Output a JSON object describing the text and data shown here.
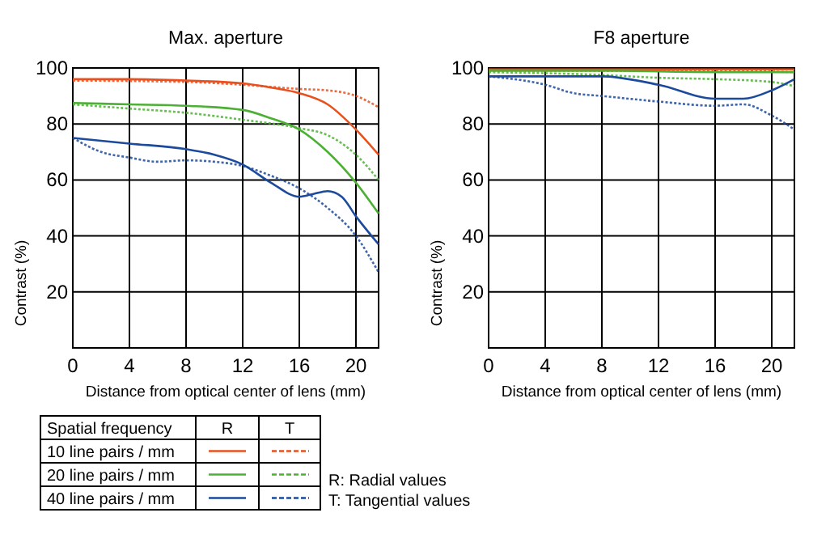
{
  "chart_data": [
    {
      "type": "line",
      "title": "Max. aperture",
      "xlabel": "Distance from optical center of lens (mm)",
      "ylabel": "Contrast (%)",
      "xlim": [
        0,
        21.6
      ],
      "xticks": [
        0,
        4,
        8,
        12,
        16,
        20
      ],
      "ylim": [
        0,
        100
      ],
      "yticks": [
        20,
        40,
        60,
        80,
        100
      ],
      "grid": true,
      "legend": "bottom",
      "legend_title": "Spatial frequency",
      "annotations": [
        "R",
        "T",
        "R: Radial values",
        "T: Tangential values"
      ],
      "series": [
        {
          "name": "10 line pairs / mm",
          "color": "#e8501e",
          "line_style": "solid",
          "x": [
            0,
            4,
            8,
            12,
            14,
            16,
            18,
            20,
            21.6
          ],
          "values": [
            96,
            96,
            95.5,
            94.5,
            93,
            91,
            87,
            78,
            69
          ]
        },
        {
          "color": "#e8501e",
          "line_style": "dotted",
          "x": [
            0,
            8,
            12,
            16,
            18,
            20,
            21.6
          ],
          "values": [
            95.5,
            95,
            94,
            92.5,
            92,
            90,
            86
          ]
        },
        {
          "name": "20 line pairs / mm",
          "color": "#4cb034",
          "line_style": "solid",
          "x": [
            0,
            4,
            8,
            12,
            14,
            16,
            18,
            20,
            21.6
          ],
          "values": [
            87.5,
            87,
            86.5,
            85,
            82,
            78,
            70,
            59,
            48
          ]
        },
        {
          "color": "#4cb034",
          "line_style": "dotted",
          "x": [
            0,
            4,
            8,
            12,
            16,
            18,
            20,
            21.6
          ],
          "values": [
            87,
            85.5,
            84,
            81.5,
            78.5,
            76,
            69,
            60
          ]
        },
        {
          "name": "40 line pairs / mm",
          "color": "#1c4a9c",
          "line_style": "solid",
          "x": [
            0,
            4,
            8,
            10,
            12,
            14,
            16,
            17,
            18,
            19,
            20,
            21.6
          ],
          "values": [
            75,
            73,
            71,
            69,
            65.5,
            59,
            54,
            55,
            56,
            54,
            47,
            37
          ]
        },
        {
          "color": "#1c4a9c",
          "line_style": "dotted",
          "x": [
            0,
            2,
            4,
            6,
            8,
            10,
            12,
            14,
            16,
            18,
            20,
            21.6
          ],
          "values": [
            75,
            70,
            68,
            66.5,
            67,
            66.5,
            65,
            61.5,
            57,
            50,
            40,
            27
          ]
        }
      ]
    },
    {
      "type": "line",
      "title": "F8 aperture",
      "xlabel": "Distance from optical center of lens (mm)",
      "ylabel": "Contrast (%)",
      "xlim": [
        0,
        21.6
      ],
      "xticks": [
        0,
        4,
        8,
        12,
        16,
        20
      ],
      "ylim": [
        0,
        100
      ],
      "yticks": [
        20,
        40,
        60,
        80,
        100
      ],
      "grid": true,
      "series": [
        {
          "color": "#e8501e",
          "line_style": "solid",
          "x": [
            0,
            8,
            16,
            21.6
          ],
          "values": [
            99.5,
            99.5,
            99.5,
            99.5
          ]
        },
        {
          "color": "#e8501e",
          "line_style": "dotted",
          "x": [
            0,
            8,
            16,
            21.6
          ],
          "values": [
            99,
            99,
            99,
            98.5
          ]
        },
        {
          "color": "#4cb034",
          "line_style": "solid",
          "x": [
            0,
            8,
            16,
            21.6
          ],
          "values": [
            99,
            99,
            98.5,
            98.5
          ]
        },
        {
          "color": "#4cb034",
          "line_style": "dotted",
          "x": [
            0,
            8,
            12,
            16,
            20,
            21.6
          ],
          "values": [
            98.5,
            97.5,
            96.5,
            96,
            95,
            93.5
          ]
        },
        {
          "color": "#1c4a9c",
          "line_style": "solid",
          "x": [
            0,
            4,
            8,
            12,
            16,
            18,
            20,
            21.6
          ],
          "values": [
            97,
            97,
            97,
            94,
            89,
            89,
            92,
            96
          ]
        },
        {
          "color": "#1c4a9c",
          "line_style": "dotted",
          "x": [
            0,
            4,
            6,
            8,
            12,
            16,
            18,
            20,
            21.6
          ],
          "values": [
            97,
            94,
            91,
            90,
            88,
            86.5,
            87,
            83,
            78
          ]
        }
      ]
    }
  ]
}
